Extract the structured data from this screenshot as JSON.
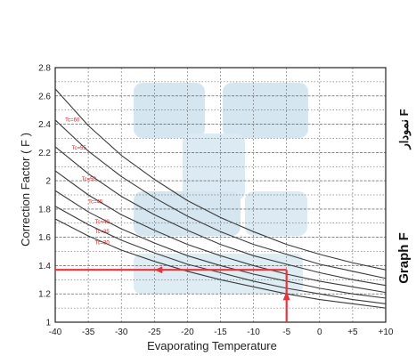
{
  "chart_data": {
    "type": "line",
    "xlabel": "Evaporating Temperature",
    "ylabel": "Correction Factor ( F )",
    "xlim": [
      -40,
      10
    ],
    "ylim": [
      1.0,
      2.8
    ],
    "x_ticks": [
      "-40",
      "-35",
      "-30",
      "-25",
      "-20",
      "-15",
      "-10",
      "-5",
      "0",
      "+5",
      "+10"
    ],
    "y_ticks": [
      "1",
      "1.2",
      "1.4",
      "1.6",
      "1.8",
      "2",
      "2.2",
      "2.4",
      "2.6",
      "2.8"
    ],
    "grid": true,
    "x": [
      -40,
      -35,
      -30,
      -25,
      -20,
      -15,
      -10,
      -5,
      0,
      5,
      10
    ],
    "series": [
      {
        "name": "Tc=60",
        "values": [
          2.65,
          2.39,
          2.18,
          2.01,
          1.86,
          1.74,
          1.64,
          1.55,
          1.48,
          1.42,
          1.37
        ]
      },
      {
        "name": "Tc=55",
        "values": [
          2.43,
          2.21,
          2.03,
          1.88,
          1.75,
          1.64,
          1.55,
          1.48,
          1.41,
          1.36,
          1.31
        ]
      },
      {
        "name": "Tc=50",
        "values": [
          2.24,
          2.05,
          1.89,
          1.76,
          1.65,
          1.55,
          1.47,
          1.41,
          1.35,
          1.3,
          1.26
        ]
      },
      {
        "name": "Tc=45",
        "values": [
          2.07,
          1.9,
          1.76,
          1.65,
          1.55,
          1.47,
          1.4,
          1.34,
          1.29,
          1.25,
          1.21
        ]
      },
      {
        "name": "Tc=40",
        "values": [
          1.93,
          1.78,
          1.66,
          1.56,
          1.47,
          1.4,
          1.34,
          1.29,
          1.24,
          1.2,
          1.17
        ]
      },
      {
        "name": "Tc=35",
        "values": [
          1.82,
          1.69,
          1.58,
          1.49,
          1.41,
          1.35,
          1.29,
          1.24,
          1.2,
          1.16,
          1.13
        ]
      },
      {
        "name": "Tc=30",
        "values": [
          1.73,
          1.61,
          1.51,
          1.43,
          1.36,
          1.3,
          1.25,
          1.2,
          1.16,
          1.13,
          1.1
        ]
      }
    ],
    "annotation": {
      "x": -5,
      "y": 1.37
    },
    "side_label": {
      "text": "Graph F",
      "rtl_text": "نمودار F"
    },
    "colors": {
      "curves": "#3a3a3a",
      "annotation": "#e8343c",
      "tc_labels": "#d2232a",
      "watermark": "#cfe2ee"
    }
  }
}
